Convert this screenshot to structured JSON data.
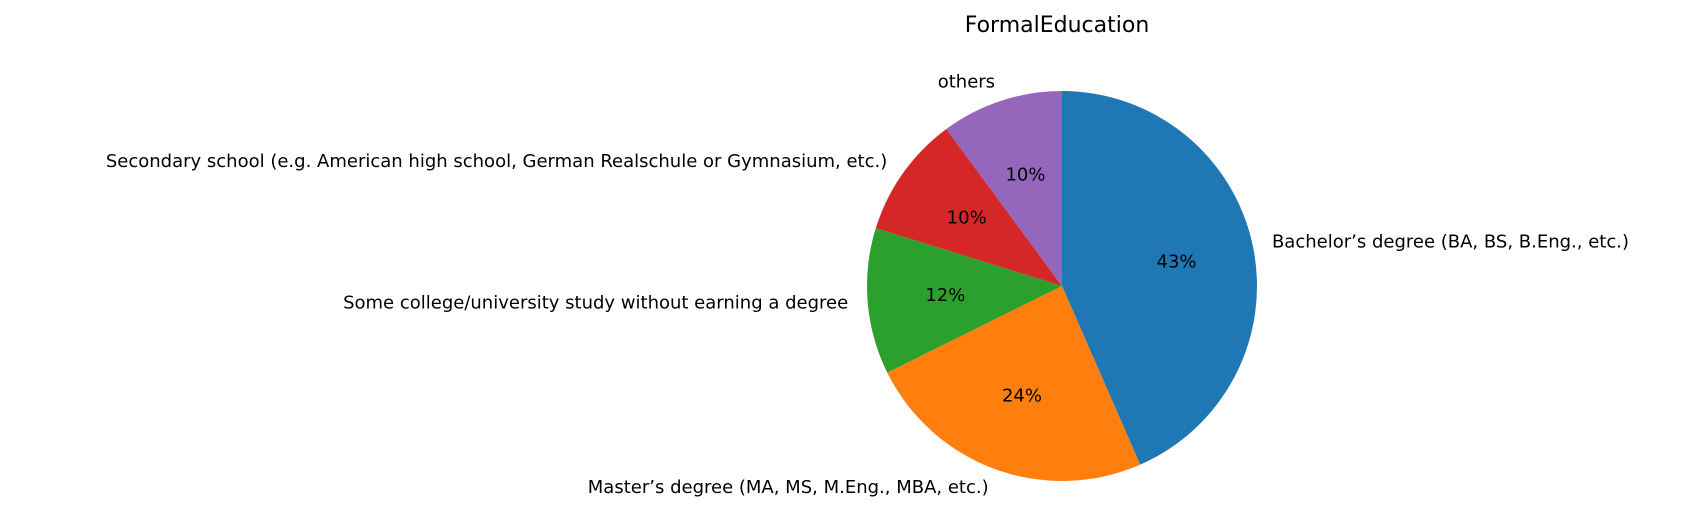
{
  "chart_data": {
    "type": "pie",
    "title": "FormalEducation",
    "start_angle_deg": 90,
    "direction": "clockwise",
    "slices": [
      {
        "label": "Bachelor’s degree (BA, BS, B.Eng., etc.)",
        "value": 43,
        "pct_text": "43%",
        "color": "#1f77b4"
      },
      {
        "label": "Master’s degree (MA, MS, M.Eng., MBA, etc.)",
        "value": 24,
        "pct_text": "24%",
        "color": "#ff7f0e"
      },
      {
        "label": "Some college/university study without earning a degree",
        "value": 12,
        "pct_text": "12%",
        "color": "#2ca02c"
      },
      {
        "label": "Secondary school (e.g. American high school, German Realschule or Gymnasium, etc.)",
        "value": 10,
        "pct_text": "10%",
        "color": "#d62728"
      },
      {
        "label": "others",
        "value": 10,
        "pct_text": "10%",
        "color": "#9467bd"
      }
    ]
  }
}
